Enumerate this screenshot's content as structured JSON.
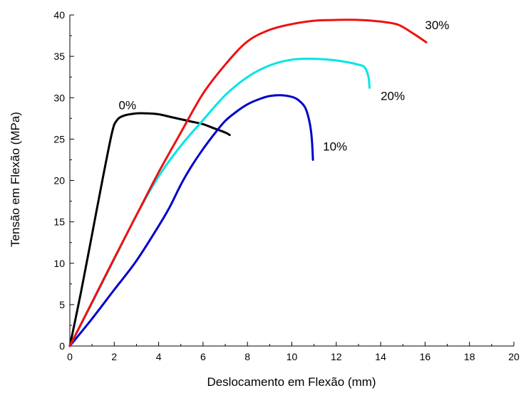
{
  "chart_data": {
    "type": "line",
    "title": "",
    "xlabel": "Deslocamento em Flexão (mm)",
    "ylabel": "Tensão em Flexão (MPa)",
    "xlim": [
      0,
      20
    ],
    "ylim": [
      0,
      40
    ],
    "xticks": [
      0,
      2,
      4,
      6,
      8,
      10,
      12,
      14,
      16,
      18,
      20
    ],
    "yticks": [
      0,
      5,
      10,
      15,
      20,
      25,
      30,
      35,
      40
    ],
    "grid": false,
    "legend": "none (series labeled inline)",
    "series": [
      {
        "name": "0%",
        "color": "#000000",
        "points": [
          [
            0,
            0
          ],
          [
            0.5,
            6.5
          ],
          [
            1.0,
            13.5
          ],
          [
            1.5,
            20.5
          ],
          [
            1.9,
            25.8
          ],
          [
            2.1,
            27.2
          ],
          [
            2.4,
            27.8
          ],
          [
            3.0,
            28.1
          ],
          [
            3.5,
            28.1
          ],
          [
            4.0,
            28.0
          ],
          [
            4.5,
            27.7
          ],
          [
            5.0,
            27.4
          ],
          [
            5.5,
            27.1
          ],
          [
            6.0,
            26.8
          ],
          [
            6.5,
            26.3
          ],
          [
            7.0,
            25.8
          ],
          [
            7.2,
            25.5
          ]
        ]
      },
      {
        "name": "10%",
        "color": "#0000cc",
        "points": [
          [
            0,
            0
          ],
          [
            1,
            3.3
          ],
          [
            2,
            6.8
          ],
          [
            3,
            10.3
          ],
          [
            4,
            14.5
          ],
          [
            4.5,
            16.8
          ],
          [
            5,
            19.5
          ],
          [
            5.5,
            21.8
          ],
          [
            6,
            23.8
          ],
          [
            6.5,
            25.6
          ],
          [
            7,
            27.2
          ],
          [
            7.5,
            28.3
          ],
          [
            8,
            29.2
          ],
          [
            8.5,
            29.8
          ],
          [
            9,
            30.2
          ],
          [
            9.5,
            30.3
          ],
          [
            10,
            30.1
          ],
          [
            10.3,
            29.7
          ],
          [
            10.6,
            28.8
          ],
          [
            10.8,
            27.0
          ],
          [
            10.9,
            25.0
          ],
          [
            10.95,
            22.5
          ]
        ]
      },
      {
        "name": "20%",
        "color": "#00e5e5",
        "points": [
          [
            0,
            0
          ],
          [
            1,
            5.2
          ],
          [
            2,
            10.5
          ],
          [
            3,
            15.8
          ],
          [
            4,
            20.5
          ],
          [
            5,
            24.2
          ],
          [
            6,
            27.3
          ],
          [
            7,
            30.3
          ],
          [
            8,
            32.5
          ],
          [
            9,
            33.9
          ],
          [
            10,
            34.6
          ],
          [
            11,
            34.7
          ],
          [
            12,
            34.5
          ],
          [
            13,
            34.0
          ],
          [
            13.3,
            33.6
          ],
          [
            13.45,
            32.5
          ],
          [
            13.5,
            31.2
          ]
        ]
      },
      {
        "name": "30%",
        "color": "#ee1111",
        "points": [
          [
            0,
            0
          ],
          [
            1,
            5.3
          ],
          [
            2,
            10.6
          ],
          [
            3,
            15.8
          ],
          [
            4,
            21.0
          ],
          [
            5,
            25.8
          ],
          [
            6,
            30.5
          ],
          [
            7,
            34.0
          ],
          [
            8,
            36.8
          ],
          [
            9,
            38.2
          ],
          [
            10,
            38.9
          ],
          [
            11,
            39.3
          ],
          [
            12,
            39.4
          ],
          [
            13,
            39.4
          ],
          [
            14,
            39.2
          ],
          [
            14.8,
            38.8
          ],
          [
            15.5,
            37.7
          ],
          [
            16.05,
            36.7
          ]
        ]
      }
    ],
    "annotations": [
      {
        "text": "0%",
        "x": 2.2,
        "y": 28.6
      },
      {
        "text": "10%",
        "x": 11.4,
        "y": 23.6
      },
      {
        "text": "20%",
        "x": 14.0,
        "y": 29.7
      },
      {
        "text": "30%",
        "x": 16.0,
        "y": 38.3
      }
    ]
  }
}
